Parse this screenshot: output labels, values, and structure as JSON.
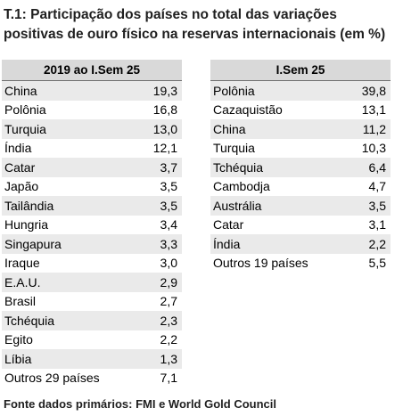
{
  "title": "T.1: Participação dos países no total das variações positivas de ouro físico na reservas internacionais (em %)",
  "left_table": {
    "header": "2019 ao I.Sem 25",
    "rows": [
      {
        "country": "China",
        "value": "19,3"
      },
      {
        "country": "Polônia",
        "value": "16,8"
      },
      {
        "country": "Turquia",
        "value": "13,0"
      },
      {
        "country": "Índia",
        "value": "12,1"
      },
      {
        "country": "Catar",
        "value": "3,7"
      },
      {
        "country": "Japão",
        "value": "3,5"
      },
      {
        "country": "Tailândia",
        "value": "3,5"
      },
      {
        "country": "Hungria",
        "value": "3,4"
      },
      {
        "country": "Singapura",
        "value": "3,3"
      },
      {
        "country": "Iraque",
        "value": "3,0"
      },
      {
        "country": "E.A.U.",
        "value": "2,9"
      },
      {
        "country": "Brasil",
        "value": "2,7"
      },
      {
        "country": "Tchéquia",
        "value": "2,3"
      },
      {
        "country": "Egito",
        "value": "2,2"
      },
      {
        "country": "Líbia",
        "value": "1,3"
      },
      {
        "country": "Outros 29 países",
        "value": "7,1"
      }
    ]
  },
  "right_table": {
    "header": "I.Sem 25",
    "rows": [
      {
        "country": "Polônia",
        "value": "39,8"
      },
      {
        "country": "Cazaquistão",
        "value": "13,1"
      },
      {
        "country": "China",
        "value": "11,2"
      },
      {
        "country": "Turquia",
        "value": "10,3"
      },
      {
        "country": "Tchéquia",
        "value": "6,4"
      },
      {
        "country": "Cambodja",
        "value": "4,7"
      },
      {
        "country": "Austrália",
        "value": "3,5"
      },
      {
        "country": "Catar",
        "value": "3,1"
      },
      {
        "country": "Índia",
        "value": "2,2"
      },
      {
        "country": "Outros 19  países",
        "value": "5,5"
      }
    ]
  },
  "source": "Fonte dados primários: FMI e World Gold Council",
  "colors": {
    "header_bg": "#d9d9d9",
    "stripe_bg": "#eaeaea"
  }
}
